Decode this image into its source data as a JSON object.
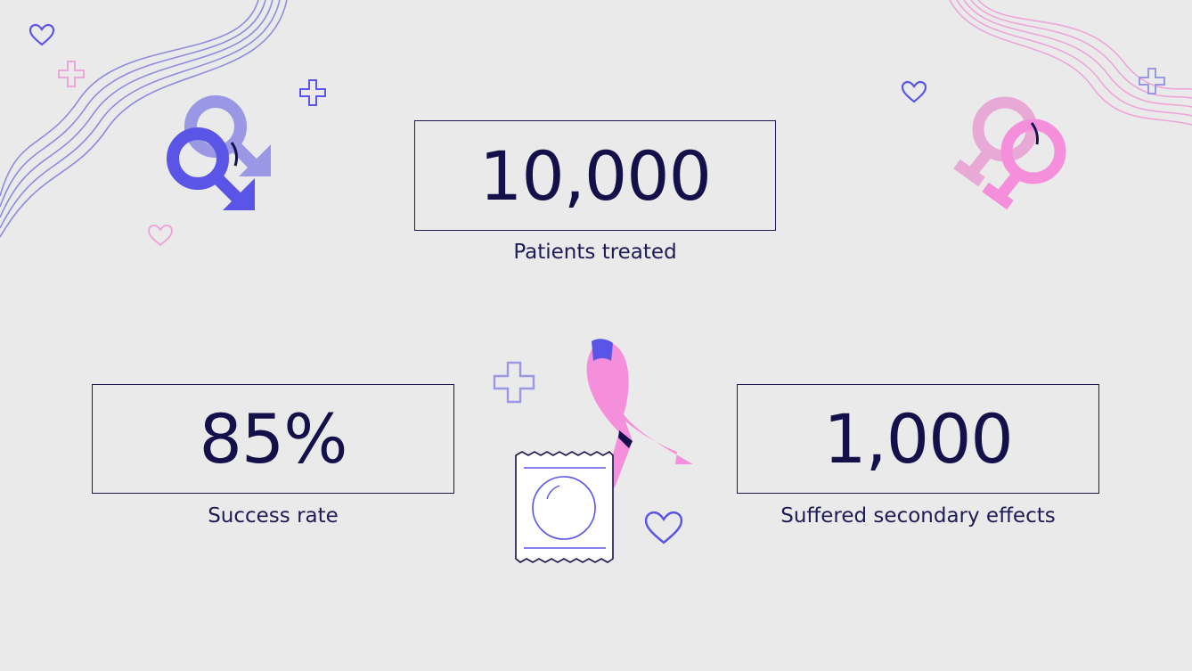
{
  "stats": {
    "patients": {
      "value": "10,000",
      "label": "Patients treated"
    },
    "success": {
      "value": "85%",
      "label": "Success rate"
    },
    "effects": {
      "value": "1,000",
      "label": "Suffered secondary effects"
    }
  },
  "colors": {
    "background": "#ebeaeb",
    "text": "#14114a",
    "purple": "#5a55e6",
    "light_purple": "#9a97e4",
    "pink": "#f58fdc",
    "light_pink": "#e9a9d6"
  },
  "icons": [
    "male-symbol-icon",
    "female-symbol-icon",
    "awareness-ribbon-icon",
    "condom-package-icon",
    "heart-icon",
    "plus-icon"
  ]
}
